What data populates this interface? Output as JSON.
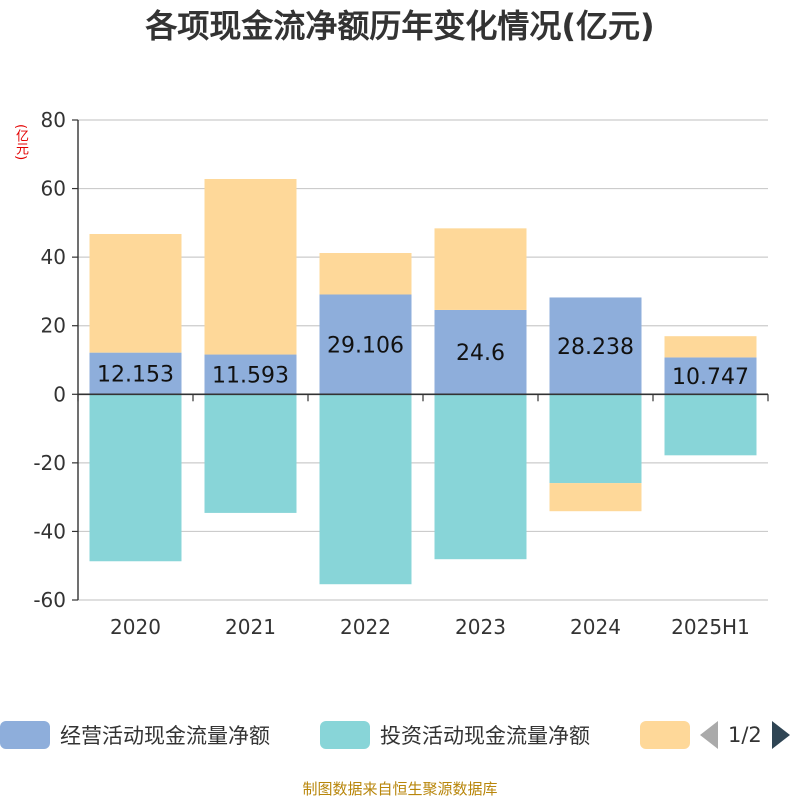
{
  "chart_data": {
    "type": "bar",
    "stacked": true,
    "title": "各项现金流净额历年变化情况(亿元)",
    "unit": "(亿元)",
    "categories": [
      "2020",
      "2021",
      "2022",
      "2023",
      "2024",
      "2025H1"
    ],
    "ylim": [
      -60,
      80
    ],
    "yticks": [
      -60,
      -40,
      -20,
      0,
      20,
      40,
      60,
      80
    ],
    "grid": true,
    "legend_position": "bottom",
    "series": [
      {
        "name": "经营活动现金流量净额",
        "color": "#8eaedb",
        "values": [
          12.153,
          11.593,
          29.106,
          24.6,
          28.238,
          10.747
        ],
        "labels": [
          "12.153",
          "11.593",
          "29.106",
          "24.6",
          "28.238",
          "10.747"
        ]
      },
      {
        "name": "投资活动现金流量净额",
        "color": "#88d5d8",
        "values": [
          -48.7,
          -34.6,
          -55.4,
          -48.1,
          -25.9,
          -17.8
        ]
      },
      {
        "name": "",
        "color": "#fed899",
        "values": [
          34.6,
          51.2,
          12.1,
          23.8,
          -8.2,
          6.2
        ]
      }
    ]
  },
  "legend": {
    "pager": "1/2",
    "left_arrow_icon": "triangle-left-icon",
    "right_arrow_icon": "triangle-right-icon"
  },
  "source_note": "制图数据来自恒生聚源数据库"
}
